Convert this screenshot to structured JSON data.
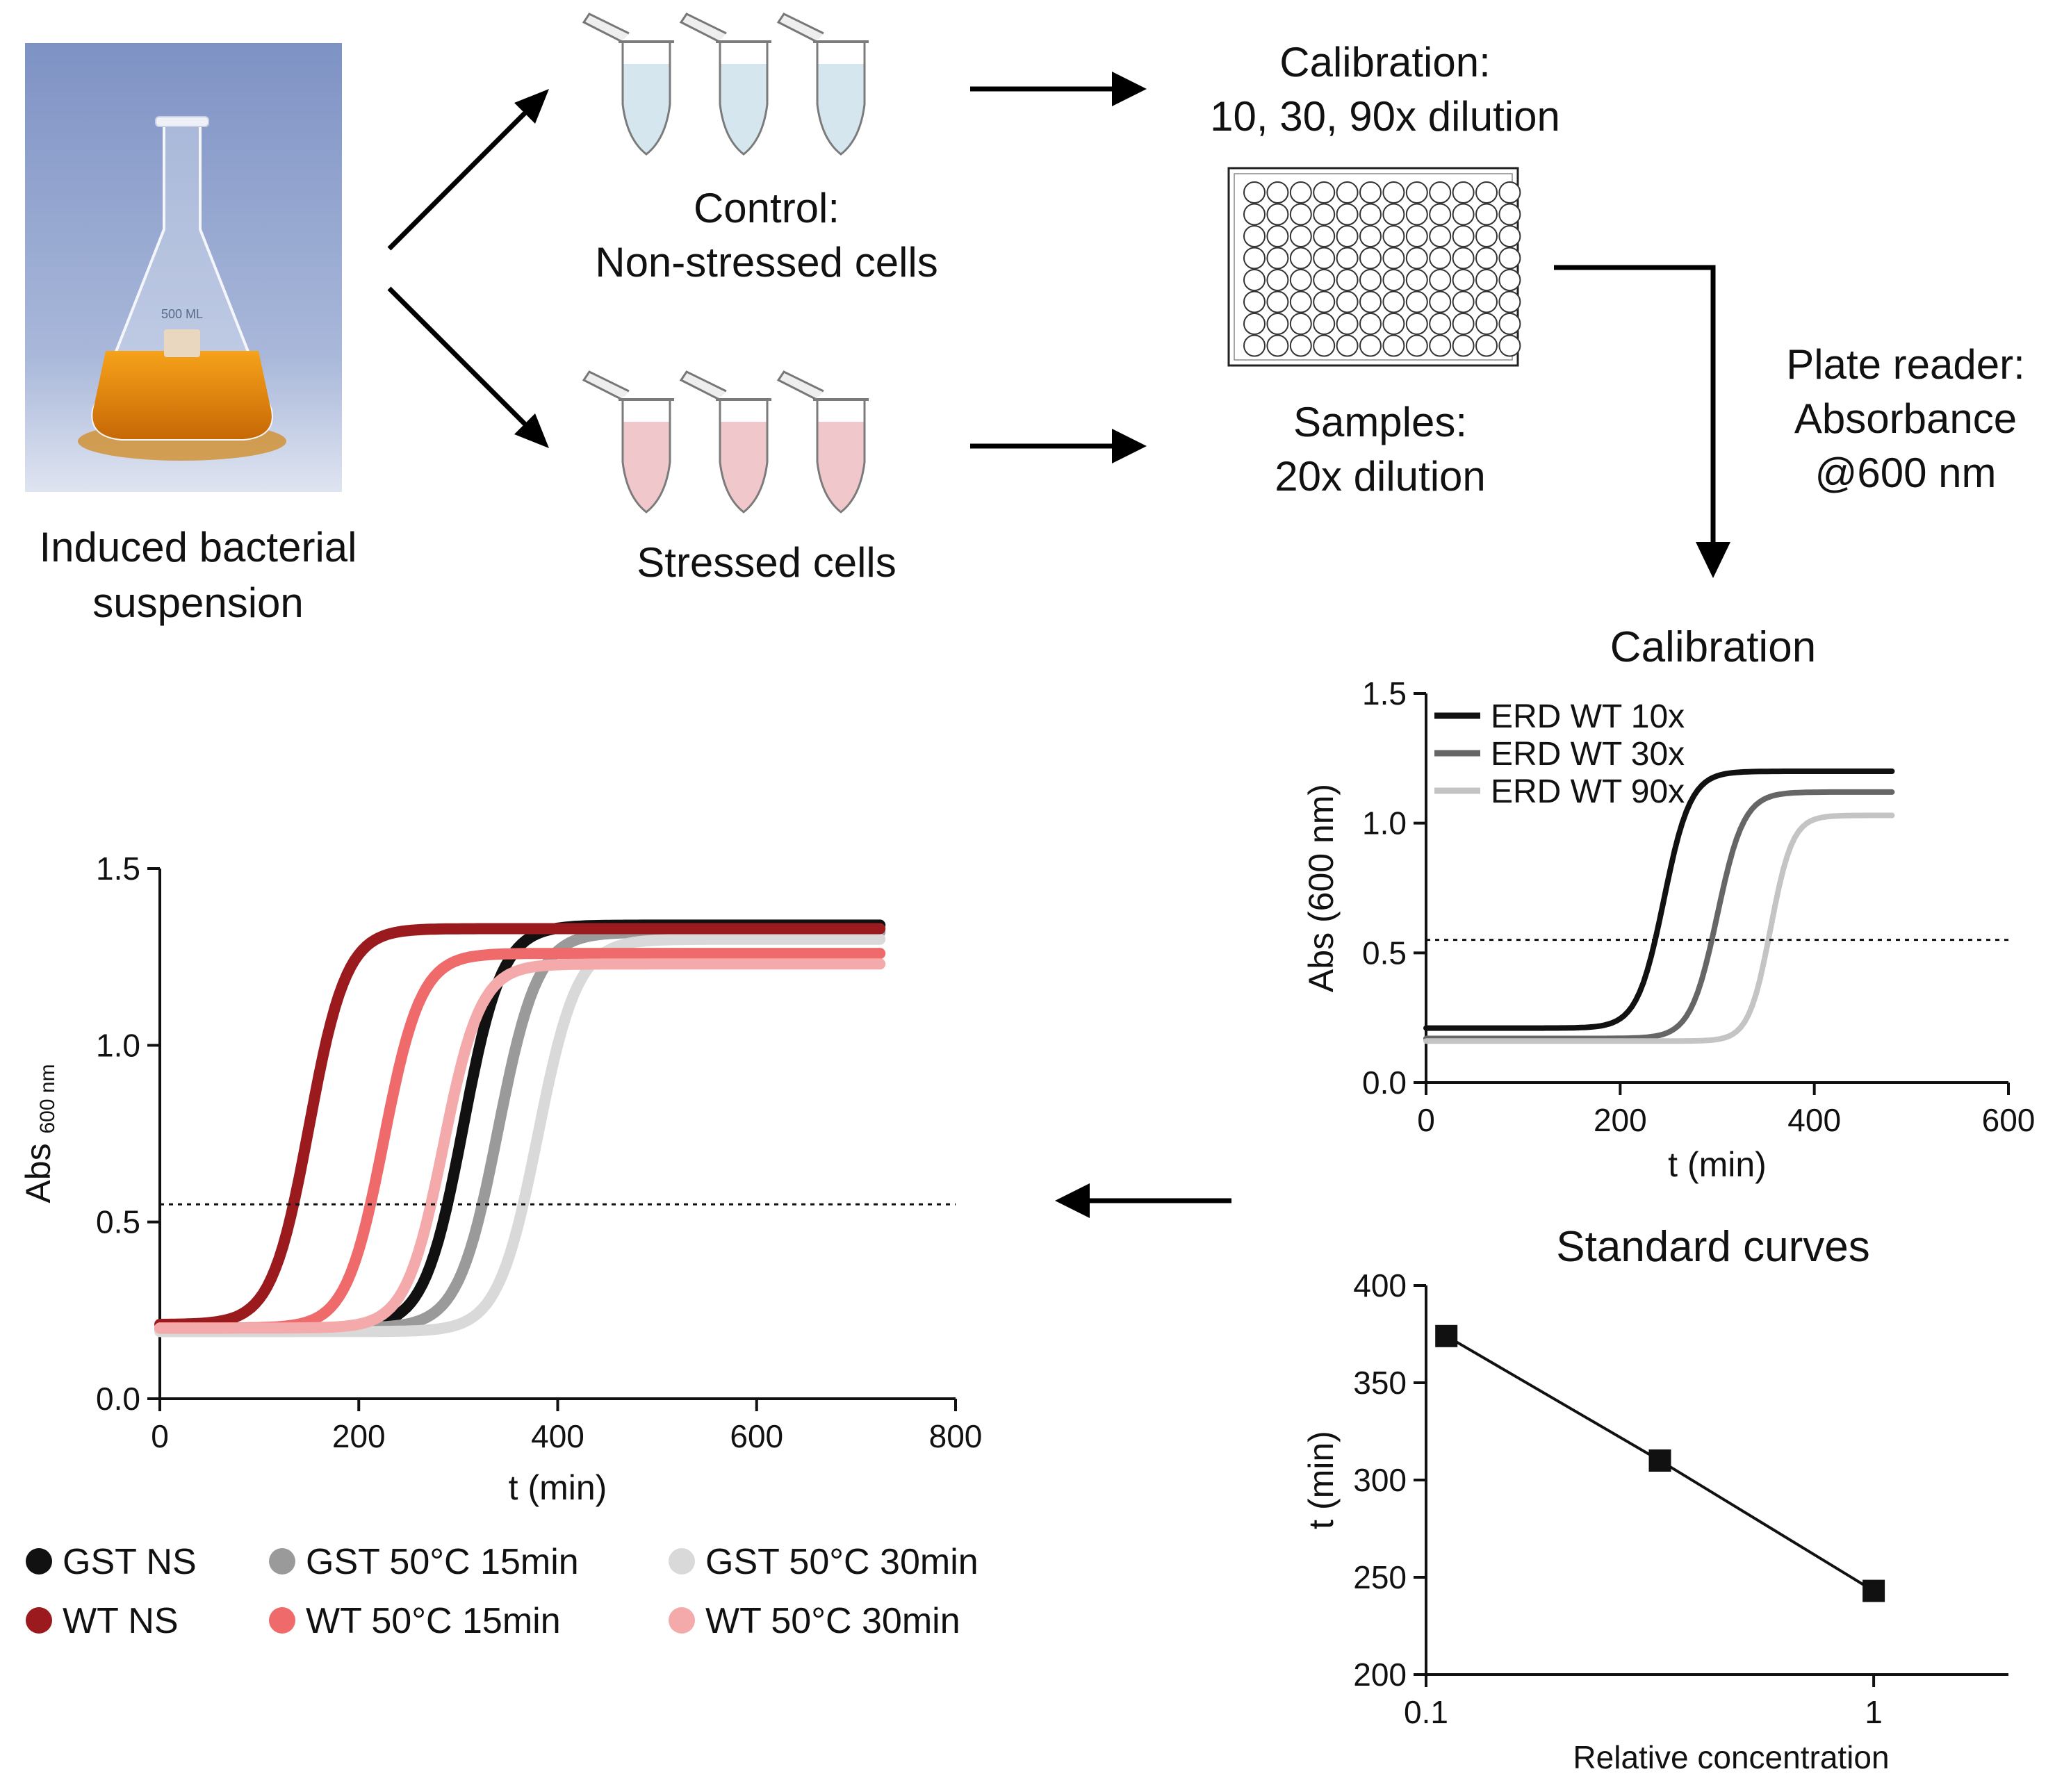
{
  "labels": {
    "flask": [
      "Induced bacterial",
      "suspension"
    ],
    "control": [
      "Control:",
      "Non-stressed cells"
    ],
    "stressed": "Stressed cells",
    "calibration": [
      "Calibration:",
      "10, 30, 90x dilution"
    ],
    "samples": [
      "Samples:",
      "20x dilution"
    ],
    "plate_reader": [
      "Plate reader:",
      "Absorbance",
      "@600 nm"
    ],
    "flask_marking": "500 ML"
  },
  "colors": {
    "control_liquid": "#d5e6ee",
    "stressed_liquid": "#f0c8cc",
    "flask_liquid": "#e88a0c",
    "flask_bg": "#8aa0c8"
  },
  "chart_data": [
    {
      "id": "growth",
      "type": "line",
      "title": "",
      "xlabel": "t (min)",
      "ylabel": "Abs",
      "ylabel_sub": "600 nm",
      "xlim": [
        0,
        800
      ],
      "ylim": [
        0,
        1.5
      ],
      "xticks": [
        "0",
        "200",
        "400",
        "600",
        "800"
      ],
      "yticks": [
        "0.0",
        "0.5",
        "1.0",
        "1.5"
      ],
      "threshold": 0.55,
      "series": [
        {
          "name": "GST NS",
          "color": "#111111",
          "base": 0.2,
          "top": 1.34,
          "mid": 305,
          "width": 78,
          "tmax": 725
        },
        {
          "name": "GST 50°C 15min",
          "color": "#9a9a9a",
          "base": 0.2,
          "top": 1.32,
          "mid": 340,
          "width": 80,
          "tmax": 725
        },
        {
          "name": "GST 50°C 30min",
          "color": "#d9d9d9",
          "base": 0.19,
          "top": 1.3,
          "mid": 380,
          "width": 80,
          "tmax": 725
        },
        {
          "name": "WT NS",
          "color": "#9b1a1d",
          "base": 0.21,
          "top": 1.33,
          "mid": 150,
          "width": 75,
          "tmax": 725
        },
        {
          "name": "WT 50°C 15min",
          "color": "#ef6a6a",
          "base": 0.2,
          "top": 1.26,
          "mid": 225,
          "width": 75,
          "tmax": 725
        },
        {
          "name": "WT 50°C 30min",
          "color": "#f4aaaa",
          "base": 0.2,
          "top": 1.23,
          "mid": 285,
          "width": 75,
          "tmax": 725
        }
      ]
    },
    {
      "id": "calibration",
      "type": "line",
      "title": "Calibration",
      "xlabel": "t (min)",
      "ylabel": "Abs (600 nm)",
      "xlim": [
        0,
        600
      ],
      "ylim": [
        0,
        1.5
      ],
      "xticks": [
        "0",
        "200",
        "400",
        "600"
      ],
      "yticks": [
        "0.0",
        "0.5",
        "1.0",
        "1.5"
      ],
      "threshold": 0.55,
      "series": [
        {
          "name": "ERD WT 10x",
          "color": "#111111",
          "base": 0.21,
          "top": 1.2,
          "mid": 245,
          "width": 55,
          "tmax": 480
        },
        {
          "name": "ERD WT 30x",
          "color": "#666666",
          "base": 0.17,
          "top": 1.12,
          "mid": 300,
          "width": 55,
          "tmax": 480
        },
        {
          "name": "ERD WT 90x",
          "color": "#c4c4c4",
          "base": 0.16,
          "top": 1.03,
          "mid": 355,
          "width": 45,
          "tmax": 480
        }
      ]
    },
    {
      "id": "standard",
      "type": "scatter",
      "title": "Standard curves",
      "xlabel": "Relative concentration",
      "ylabel": "t (min)",
      "xscale": "log",
      "xlim": [
        0.1,
        2
      ],
      "ylim": [
        200,
        400
      ],
      "xticks": [
        "0.1",
        "1"
      ],
      "yticks": [
        "200",
        "250",
        "300",
        "350",
        "400"
      ],
      "x": [
        0.111,
        0.333,
        1
      ],
      "y": [
        374,
        310,
        243
      ]
    }
  ]
}
